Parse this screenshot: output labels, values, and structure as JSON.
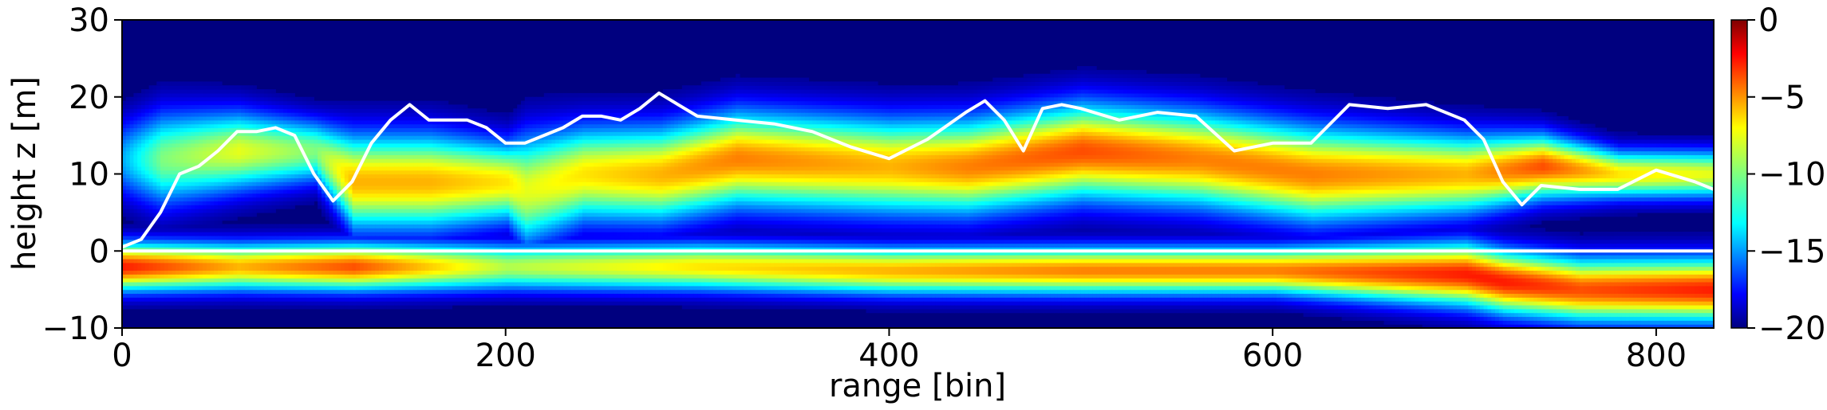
{
  "chart_data": {
    "type": "heatmap",
    "xlabel": "range [bin]",
    "ylabel": "height z [m]",
    "xlim": [
      0,
      830
    ],
    "ylim": [
      -10,
      30
    ],
    "x_ticks": [
      0,
      200,
      400,
      600,
      800
    ],
    "y_ticks": [
      -10,
      0,
      10,
      20,
      30
    ],
    "colormap": "jet",
    "colorbar": {
      "range": [
        -20,
        0
      ],
      "ticks": [
        0,
        -5,
        -10,
        -15,
        -20
      ],
      "tick_labels": [
        "0",
        "−5",
        "−10",
        "−15",
        "−20"
      ]
    },
    "ground_line_y": 0,
    "canopy_height_line": {
      "color": "#ffffff",
      "x": [
        0,
        10,
        20,
        30,
        40,
        50,
        60,
        70,
        80,
        90,
        100,
        110,
        120,
        130,
        140,
        150,
        160,
        170,
        180,
        190,
        200,
        210,
        220,
        230,
        240,
        250,
        260,
        270,
        280,
        290,
        300,
        320,
        340,
        360,
        380,
        400,
        420,
        440,
        450,
        460,
        470,
        480,
        490,
        500,
        520,
        540,
        560,
        580,
        600,
        620,
        640,
        660,
        680,
        700,
        710,
        720,
        730,
        740,
        760,
        780,
        800,
        820,
        830
      ],
      "y": [
        0.5,
        1.5,
        5,
        10,
        11,
        13,
        15.5,
        15.5,
        16,
        15,
        10,
        6.5,
        9,
        14,
        17,
        19,
        17,
        17,
        17,
        16,
        14,
        14,
        15,
        16,
        17.5,
        17.5,
        17,
        18.5,
        20.5,
        19,
        17.5,
        17,
        16.5,
        15.5,
        13.5,
        12,
        14.5,
        18,
        19.5,
        17,
        13,
        18.5,
        19,
        18.5,
        17,
        18,
        17.5,
        13,
        14,
        14,
        19,
        18.5,
        19,
        17,
        14.5,
        9,
        6,
        8.5,
        8,
        8,
        10.5,
        9,
        8
      ]
    },
    "intensity_bands": [
      {
        "x": [
          0,
          20,
          60,
          100,
          120,
          160,
          200,
          210,
          240,
          280,
          320,
          400,
          440,
          500,
          560,
          620,
          700,
          740,
          780,
          830
        ],
        "center": [
          12,
          12,
          13,
          13,
          9,
          9,
          9,
          8,
          10,
          10,
          12,
          11,
          11,
          13,
          12,
          10,
          10,
          11,
          10,
          10
        ],
        "width": [
          5,
          6,
          5,
          4,
          6,
          6,
          5,
          7,
          6,
          6,
          6,
          6,
          6,
          6,
          6,
          6,
          5,
          4,
          3,
          3
        ],
        "peak": [
          -14,
          -10,
          -8,
          -10,
          -6,
          -6,
          -7,
          -8,
          -7,
          -6,
          -5,
          -6,
          -5,
          -4,
          -5,
          -5,
          -6,
          -4,
          -7,
          -8
        ]
      },
      {
        "x": [
          0,
          60,
          120,
          200,
          300,
          400,
          500,
          600,
          700,
          720,
          760,
          830
        ],
        "center": [
          -2,
          -2,
          -2,
          -2,
          -2,
          -2.5,
          -2.5,
          -2.5,
          -3,
          -4,
          -5,
          -5
        ],
        "width": [
          3,
          3,
          3,
          3,
          3,
          3,
          3,
          3,
          4,
          4,
          4,
          4
        ],
        "peak": [
          -3,
          -6,
          -4,
          -9,
          -7,
          -6,
          -5,
          -5,
          -3,
          -3,
          -4,
          -3
        ]
      }
    ]
  }
}
